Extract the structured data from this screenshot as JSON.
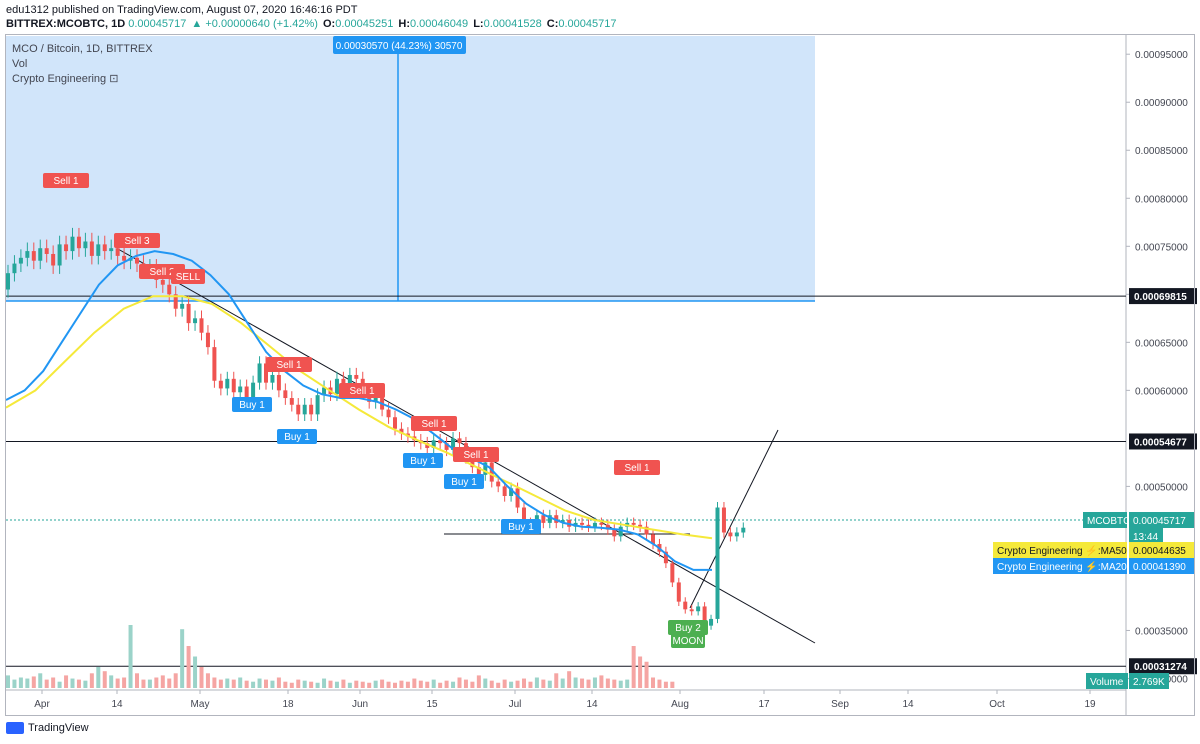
{
  "header": {
    "published": "edu1312 published on TradingView.com, August 07, 2020 16:46:16 PDT",
    "symbol": "BITTREX:MCOBTC, 1D",
    "last": "0.00045717",
    "change": "▲ +0.00000640 (+1.42%)",
    "o_label": "O:",
    "o": "0.00045251",
    "h_label": "H:",
    "h": "0.00046049",
    "l_label": "L:",
    "l": "0.00041528",
    "c_label": "C:",
    "c": "0.00045717"
  },
  "legend": {
    "title": "MCO / Bitcoin, 1D, BITTREX",
    "vol": "Vol",
    "indicator": "Crypto Engineering ⊡"
  },
  "footer": {
    "brand": "TradingView"
  },
  "colors": {
    "up": "#26a69a",
    "down": "#ef5350",
    "ma20": "#2196f3",
    "ma50": "#f5e93a",
    "box": "#cfe4fa",
    "buy": "#2196f3",
    "sell": "#f05350"
  },
  "chart_data": {
    "type": "candlestick",
    "x_ticks": [
      "Apr",
      "14",
      "May",
      "18",
      "Jun",
      "15",
      "Jul",
      "14",
      "Aug",
      "17",
      "Sep",
      "14",
      "Oct",
      "19"
    ],
    "y_ticks": [
      "0.00095000",
      "0.00090000",
      "0.00085000",
      "0.00080000",
      "0.00075000",
      "0.00070000",
      "0.00065000",
      "0.00060000",
      "0.00050000",
      "0.00035000",
      "0.00030000"
    ],
    "ylim": [
      0.000288,
      0.00097
    ],
    "candles": [
      [
        0.000705,
        0.000722
      ],
      [
        0.000722,
        0.000732
      ],
      [
        0.000732,
        0.000738
      ],
      [
        0.000738,
        0.000745
      ],
      [
        0.000745,
        0.000735
      ],
      [
        0.000735,
        0.000748
      ],
      [
        0.000748,
        0.000742
      ],
      [
        0.000742,
        0.00073
      ],
      [
        0.00073,
        0.000752
      ],
      [
        0.000752,
        0.000745
      ],
      [
        0.000745,
        0.00076
      ],
      [
        0.00076,
        0.000748
      ],
      [
        0.000748,
        0.000755
      ],
      [
        0.000755,
        0.00074
      ],
      [
        0.00074,
        0.000752
      ],
      [
        0.000752,
        0.000745
      ],
      [
        0.000745,
        0.000748
      ],
      [
        0.000748,
        0.00074
      ],
      [
        0.00074,
        0.000735
      ],
      [
        0.000735,
        0.000738
      ],
      [
        0.000738,
        0.000732
      ],
      [
        0.000732,
        0.000725
      ],
      [
        0.000725,
        0.000728
      ],
      [
        0.000728,
        0.000715
      ],
      [
        0.000715,
        0.00071
      ],
      [
        0.00071,
        0.0007
      ],
      [
        0.0007,
        0.000685
      ],
      [
        0.000685,
        0.00069
      ],
      [
        0.00069,
        0.00067
      ],
      [
        0.00067,
        0.000675
      ],
      [
        0.000675,
        0.00066
      ],
      [
        0.00066,
        0.000645
      ],
      [
        0.000645,
        0.00061
      ],
      [
        0.00061,
        0.000602
      ],
      [
        0.000602,
        0.000612
      ],
      [
        0.000612,
        0.000598
      ],
      [
        0.000598,
        0.000604
      ],
      [
        0.000604,
        0.000592
      ],
      [
        0.000592,
        0.000608
      ],
      [
        0.000608,
        0.000628
      ],
      [
        0.000628,
        0.000608
      ],
      [
        0.000608,
        0.000616
      ],
      [
        0.000616,
        0.0006
      ],
      [
        0.0006,
        0.000592
      ],
      [
        0.000592,
        0.000585
      ],
      [
        0.000585,
        0.000575
      ],
      [
        0.000575,
        0.000585
      ],
      [
        0.000585,
        0.000575
      ],
      [
        0.000575,
        0.000595
      ],
      [
        0.000595,
        0.000603
      ],
      [
        0.000603,
        0.000596
      ],
      [
        0.000596,
        0.000612
      ],
      [
        0.000612,
        0.0006
      ],
      [
        0.0006,
        0.000616
      ],
      [
        0.000616,
        0.000612
      ],
      [
        0.000612,
        0.000598
      ],
      [
        0.000598,
        0.000588
      ],
      [
        0.000588,
        0.000594
      ],
      [
        0.000594,
        0.00058
      ],
      [
        0.00058,
        0.000572
      ],
      [
        0.000572,
        0.00056
      ],
      [
        0.00056,
        0.000555
      ],
      [
        0.000555,
        0.000552
      ],
      [
        0.000552,
        0.000548
      ],
      [
        0.000548,
        0.000545
      ],
      [
        0.000545,
        0.00054
      ],
      [
        0.00054,
        0.000548
      ],
      [
        0.000548,
        0.000545
      ],
      [
        0.000545,
        0.000538
      ],
      [
        0.000538,
        0.00055
      ],
      [
        0.00055,
        0.000545
      ],
      [
        0.000545,
        0.00053
      ],
      [
        0.00053,
        0.00052
      ],
      [
        0.00052,
        0.000512
      ],
      [
        0.000512,
        0.000525
      ],
      [
        0.000525,
        0.000505
      ],
      [
        0.000505,
        0.0005
      ],
      [
        0.0005,
        0.00049
      ],
      [
        0.00049,
        0.000498
      ],
      [
        0.000498,
        0.000478
      ],
      [
        0.000478,
        0.000462
      ],
      [
        0.000462,
        0.000458
      ],
      [
        0.000458,
        0.00047
      ],
      [
        0.00047,
        0.000462
      ],
      [
        0.000462,
        0.00047
      ],
      [
        0.00047,
        0.000462
      ],
      [
        0.000462,
        0.000465
      ],
      [
        0.000465,
        0.000458
      ],
      [
        0.000458,
        0.000462
      ],
      [
        0.000462,
        0.00046
      ],
      [
        0.00046,
        0.000458
      ],
      [
        0.000458,
        0.000462
      ],
      [
        0.000462,
        0.00046
      ],
      [
        0.00046,
        0.000455
      ],
      [
        0.000455,
        0.000448
      ],
      [
        0.000448,
        0.000458
      ],
      [
        0.000458,
        0.000462
      ],
      [
        0.000462,
        0.00046
      ],
      [
        0.00046,
        0.000458
      ],
      [
        0.000458,
        0.00045
      ],
      [
        0.00045,
        0.00044
      ],
      [
        0.00044,
        0.000432
      ],
      [
        0.000432,
        0.00042
      ],
      [
        0.00042,
        0.0004
      ],
      [
        0.0004,
        0.00038
      ],
      [
        0.00038,
        0.000372
      ],
      [
        0.000372,
        0.00037
      ],
      [
        0.00037,
        0.000375
      ],
      [
        0.000375,
        0.000355
      ],
      [
        0.000355,
        0.000362
      ],
      [
        0.000362,
        0.000478
      ],
      [
        0.000478,
        0.000452
      ],
      [
        0.000452,
        0.000448
      ],
      [
        0.000448,
        0.000452
      ],
      [
        0.000452,
        0.000457
      ]
    ],
    "ma20": [
      0.00059,
      0.0006,
      0.00062,
      0.00065,
      0.00068,
      0.00071,
      0.00073,
      0.00074,
      0.000745,
      0.000742,
      0.000735,
      0.00072,
      0.0007,
      0.00067,
      0.00064,
      0.00062,
      0.000605,
      0.000596,
      0.000592,
      0.000592,
      0.000588,
      0.00058,
      0.00057,
      0.000555,
      0.00054,
      0.00053,
      0.00052,
      0.0005,
      0.000482,
      0.00047,
      0.000462,
      0.000458,
      0.000457,
      0.000455,
      0.00045,
      0.000438,
      0.000422,
      0.000413,
      0.000413
    ],
    "ma50": [
      0.000582,
      0.0006,
      0.00063,
      0.00066,
      0.000685,
      0.000698,
      0.000698,
      0.00069,
      0.00067,
      0.000645,
      0.00062,
      0.0006,
      0.00058,
      0.000562,
      0.000548,
      0.000535,
      0.00052,
      0.000505,
      0.00049,
      0.000475,
      0.000465,
      0.00046,
      0.000455,
      0.00045,
      0.000446
    ],
    "volume_values": [
      12,
      8,
      10,
      9,
      11,
      14,
      8,
      10,
      6,
      12,
      9,
      8,
      7,
      14,
      20,
      16,
      12,
      9,
      10,
      60,
      14,
      8,
      8,
      10,
      12,
      9,
      14,
      56,
      40,
      30,
      20,
      14,
      10,
      8,
      9,
      8,
      10,
      7,
      6,
      9,
      8,
      7,
      10,
      6,
      5,
      8,
      7,
      6,
      5,
      9,
      7,
      6,
      8,
      5,
      7,
      6,
      5,
      7,
      8,
      6,
      5,
      7,
      6,
      9,
      7,
      6,
      8,
      5,
      7,
      6,
      10,
      8,
      6,
      12,
      9,
      7,
      5,
      8,
      6,
      7,
      9,
      6,
      10,
      8,
      7,
      14,
      9,
      16,
      10,
      9,
      8,
      10,
      12,
      9,
      8,
      7,
      8,
      40,
      30,
      25,
      10,
      8,
      6,
      6
    ],
    "horizontal_levels": [
      "0.00069815",
      "0.00054677",
      "0.00031274"
    ],
    "price_labels": {
      "last_symbol": "MCOBTC",
      "last_value": "0.00045717",
      "countdown": "13:44",
      "ma50_label": "Crypto Engineering ⚡:MA50",
      "ma50_value": "0.00044635",
      "ma20_label": "Crypto Engineering ⚡:MA20",
      "ma20_value": "0.00041390",
      "volume_label": "Volume",
      "volume_value": "2.769K"
    },
    "measure_label": "0.00030570 (44.23%) 30570",
    "signals": [
      {
        "text": "Sell 1",
        "kind": "sell"
      },
      {
        "text": "Sell 3",
        "kind": "sell"
      },
      {
        "text": "Sell 2",
        "kind": "sell"
      },
      {
        "text": "SELL",
        "kind": "sell"
      },
      {
        "text": "Sell 1",
        "kind": "sell"
      },
      {
        "text": "Sell 1",
        "kind": "sell"
      },
      {
        "text": "Sell 1",
        "kind": "sell"
      },
      {
        "text": "Sell 1",
        "kind": "sell"
      },
      {
        "text": "Sell 1",
        "kind": "sell"
      },
      {
        "text": "Buy 1",
        "kind": "buy"
      },
      {
        "text": "Buy 1",
        "kind": "buy"
      },
      {
        "text": "Buy 1",
        "kind": "buy"
      },
      {
        "text": "Buy 1",
        "kind": "buy"
      },
      {
        "text": "Buy 1",
        "kind": "buy"
      },
      {
        "text": "Buy 2",
        "kind": "moon"
      },
      {
        "text": "MOON",
        "kind": "moon"
      }
    ]
  }
}
